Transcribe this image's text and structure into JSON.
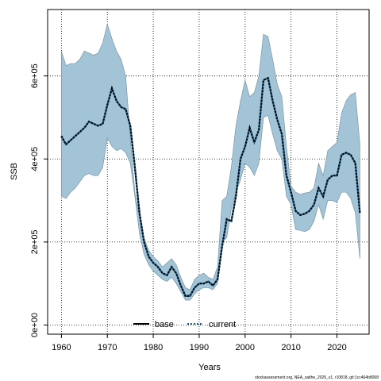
{
  "chart_data": {
    "type": "area",
    "xlabel": "Years",
    "ylabel": "SSB",
    "xlim": [
      1957,
      2027
    ],
    "ylim": [
      -22000,
      760000
    ],
    "xticks": [
      1960,
      1970,
      1980,
      1990,
      2000,
      2010,
      2020
    ],
    "yticks": [
      0,
      200000,
      400000,
      600000
    ],
    "ytick_labels": [
      "0e+00",
      "2e+05",
      "4e+05",
      "6e+05"
    ],
    "grid": true,
    "legend_position": "bottom-center",
    "legend": [
      "base",
      "current"
    ],
    "colors": {
      "band": "#a3c4d6",
      "band_edge": "#6f8d9c",
      "line": "#000000",
      "line_alt": "#1b5e8a",
      "grid": "#000000"
    },
    "footnote": "stockassessment.org, NEA_saithe_2026_v1, r10818, git:1cc464b8068",
    "years": [
      1960,
      1961,
      1962,
      1963,
      1964,
      1965,
      1966,
      1967,
      1968,
      1969,
      1970,
      1971,
      1972,
      1973,
      1974,
      1975,
      1976,
      1977,
      1978,
      1979,
      1980,
      1981,
      1982,
      1983,
      1984,
      1985,
      1986,
      1987,
      1988,
      1989,
      1990,
      1991,
      1992,
      1993,
      1994,
      1995,
      1996,
      1997,
      1998,
      1999,
      2000,
      2001,
      2002,
      2003,
      2004,
      2005,
      2006,
      2007,
      2008,
      2009,
      2010,
      2011,
      2012,
      2013,
      2014,
      2015,
      2016,
      2017,
      2018,
      2019,
      2020,
      2021,
      2022,
      2023,
      2024,
      2025
    ],
    "series": [
      {
        "name": "current",
        "style": "dotted",
        "values": [
          455000,
          435000,
          445000,
          455000,
          465000,
          475000,
          490000,
          485000,
          480000,
          485000,
          530000,
          570000,
          540000,
          525000,
          520000,
          480000,
          380000,
          270000,
          200000,
          165000,
          150000,
          140000,
          125000,
          120000,
          140000,
          125000,
          95000,
          70000,
          70000,
          90000,
          100000,
          100000,
          105000,
          95000,
          110000,
          190000,
          255000,
          250000,
          310000,
          400000,
          430000,
          475000,
          440000,
          470000,
          590000,
          595000,
          540000,
          495000,
          460000,
          360000,
          320000,
          275000,
          265000,
          268000,
          275000,
          290000,
          330000,
          310000,
          350000,
          360000,
          360000,
          410000,
          415000,
          410000,
          390000,
          270000
        ]
      },
      {
        "name": "base",
        "style": "solid",
        "values": []
      }
    ],
    "band": {
      "upper": [
        660000,
        625000,
        630000,
        630000,
        640000,
        660000,
        655000,
        650000,
        655000,
        680000,
        725000,
        690000,
        660000,
        640000,
        600000,
        450000,
        320000,
        260000,
        210000,
        180000,
        165000,
        155000,
        140000,
        150000,
        160000,
        145000,
        115000,
        90000,
        85000,
        110000,
        120000,
        125000,
        115000,
        110000,
        140000,
        300000,
        310000,
        380000,
        480000,
        540000,
        590000,
        550000,
        560000,
        600000,
        700000,
        695000,
        640000,
        580000,
        550000,
        430000,
        335000,
        320000,
        315000,
        318000,
        320000,
        330000,
        390000,
        360000,
        420000,
        430000,
        440000,
        510000,
        540000,
        555000,
        560000,
        435000
      ],
      "lower": [
        310000,
        305000,
        320000,
        330000,
        345000,
        360000,
        365000,
        360000,
        360000,
        380000,
        450000,
        430000,
        420000,
        425000,
        415000,
        390000,
        310000,
        220000,
        170000,
        145000,
        130000,
        120000,
        110000,
        105000,
        115000,
        100000,
        80000,
        60000,
        60000,
        75000,
        85000,
        90000,
        90000,
        85000,
        100000,
        200000,
        210000,
        280000,
        320000,
        350000,
        390000,
        380000,
        360000,
        390000,
        500000,
        505000,
        460000,
        420000,
        400000,
        310000,
        290000,
        230000,
        228000,
        225000,
        230000,
        250000,
        290000,
        255000,
        300000,
        300000,
        295000,
        320000,
        320000,
        305000,
        270000,
        160000
      ]
    }
  }
}
